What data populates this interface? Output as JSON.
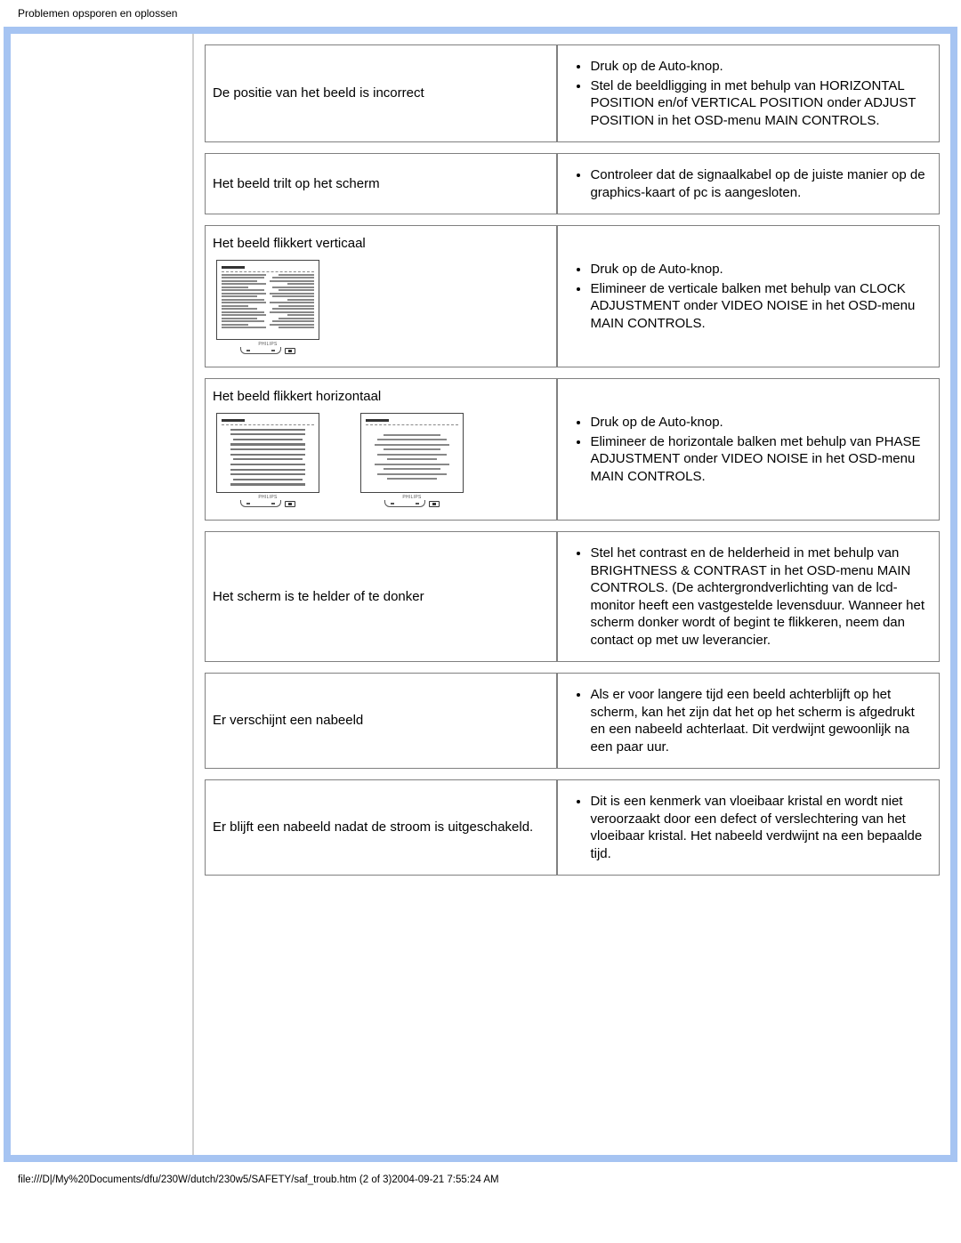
{
  "header": "Problemen opsporen en oplossen",
  "footer": "file:///D|/My%20Documents/dfu/230W/dutch/230w5/SAFETY/saf_troub.htm (2 of 3)2004-09-21 7:55:24 AM",
  "rows": [
    {
      "problem": "De positie van het beeld is incorrect",
      "solutions": [
        "Druk op de Auto-knop.",
        "Stel de beeldligging in met behulp van HORIZONTAL POSITION en/of VERTICAL POSITION onder ADJUST POSITION in het OSD-menu MAIN CONTROLS."
      ]
    },
    {
      "problem": "Het beeld trilt op het scherm",
      "solutions": [
        "Controleer dat de signaalkabel op de juiste manier op de graphics-kaart of pc is aangesloten."
      ]
    },
    {
      "problem": "Het beeld flikkert verticaal",
      "solutions": [
        "Druk op de Auto-knop.",
        "Elimineer de verticale balken met behulp van CLOCK ADJUSTMENT onder VIDEO NOISE in het OSD-menu MAIN CONTROLS."
      ]
    },
    {
      "problem": "Het beeld flikkert horizontaal",
      "solutions": [
        "Druk op de Auto-knop.",
        "Elimineer de horizontale balken met behulp van PHASE ADJUSTMENT onder VIDEO NOISE in het OSD-menu MAIN CONTROLS."
      ]
    },
    {
      "problem": "Het scherm is te helder of te donker",
      "solutions": [
        "Stel het contrast en de helderheid in met behulp van BRIGHTNESS & CONTRAST in het OSD-menu MAIN CONTROLS. (De achtergrondverlichting van de lcd-monitor heeft een vastgestelde levensduur. Wanneer het scherm donker wordt of begint te flikkeren, neem dan contact op met uw leverancier."
      ]
    },
    {
      "problem": "Er verschijnt een nabeeld",
      "solutions": [
        "Als er voor langere tijd een beeld achterblijft op het scherm, kan het zijn dat het op het scherm is afgedrukt en een nabeeld achterlaat. Dit verdwijnt gewoonlijk na een paar uur."
      ]
    },
    {
      "problem": "Er blijft een nabeeld nadat de stroom is uitgeschakeld.",
      "solutions": [
        "Dit is een kenmerk van vloeibaar kristal en wordt niet veroorzaakt door een defect of verslechtering van het vloeibaar kristal. Het nabeeld verdwijnt na een bepaalde tijd."
      ]
    }
  ],
  "monitor_label": "PHILIPS"
}
